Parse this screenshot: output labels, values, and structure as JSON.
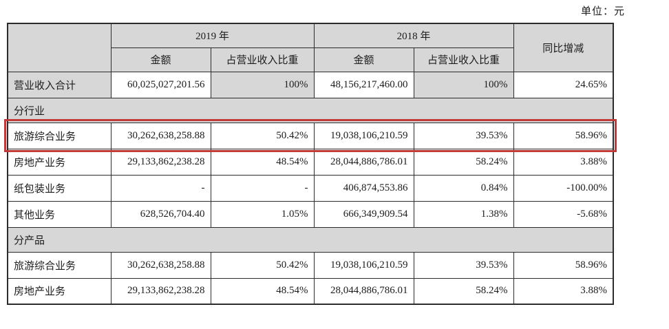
{
  "page": {
    "unit_label": "单位：元"
  },
  "colors": {
    "header_shade": "#d7d7d7",
    "highlight_red": "#c03a3a",
    "border_color": "#2b2b2b"
  },
  "table": {
    "header": {
      "year_2019": "2019 年",
      "year_2018": "2018 年",
      "amount": "金额",
      "ratio": "占营业收入比重",
      "yoy": "同比增减"
    },
    "rows": [
      {
        "type": "totals",
        "label": "营业收入合计",
        "amount_2019": "60,025,027,201.56",
        "ratio_2019": "100%",
        "amount_2018": "48,156,217,460.00",
        "ratio_2018": "100%",
        "yoy": "24.65%"
      },
      {
        "type": "section",
        "label": "分行业"
      },
      {
        "type": "data",
        "highlighted": true,
        "label": "旅游综合业务",
        "amount_2019": "30,262,638,258.88",
        "ratio_2019": "50.42%",
        "amount_2018": "19,038,106,210.59",
        "ratio_2018": "39.53%",
        "yoy": "58.96%"
      },
      {
        "type": "data",
        "label": "房地产业务",
        "amount_2019": "29,133,862,238.28",
        "ratio_2019": "48.54%",
        "amount_2018": "28,044,886,786.01",
        "ratio_2018": "58.24%",
        "yoy": "3.88%"
      },
      {
        "type": "data",
        "label": "纸包装业务",
        "amount_2019": "-",
        "ratio_2019": "-",
        "amount_2018": "406,874,553.86",
        "ratio_2018": "0.84%",
        "yoy": "-100.00%"
      },
      {
        "type": "data",
        "label": "其他业务",
        "amount_2019": "628,526,704.40",
        "ratio_2019": "1.05%",
        "amount_2018": "666,349,909.54",
        "ratio_2018": "1.38%",
        "yoy": "-5.68%"
      },
      {
        "type": "section",
        "label": "分产品"
      },
      {
        "type": "data",
        "label": "旅游综合业务",
        "amount_2019": "30,262,638,258.88",
        "ratio_2019": "50.42%",
        "amount_2018": "19,038,106,210.59",
        "ratio_2018": "39.53%",
        "yoy": "58.96%"
      },
      {
        "type": "data",
        "label": "房地产业务",
        "amount_2019": "29,133,862,238.28",
        "ratio_2019": "48.54%",
        "amount_2018": "28,044,886,786.01",
        "ratio_2018": "58.24%",
        "yoy": "3.88%"
      }
    ]
  }
}
